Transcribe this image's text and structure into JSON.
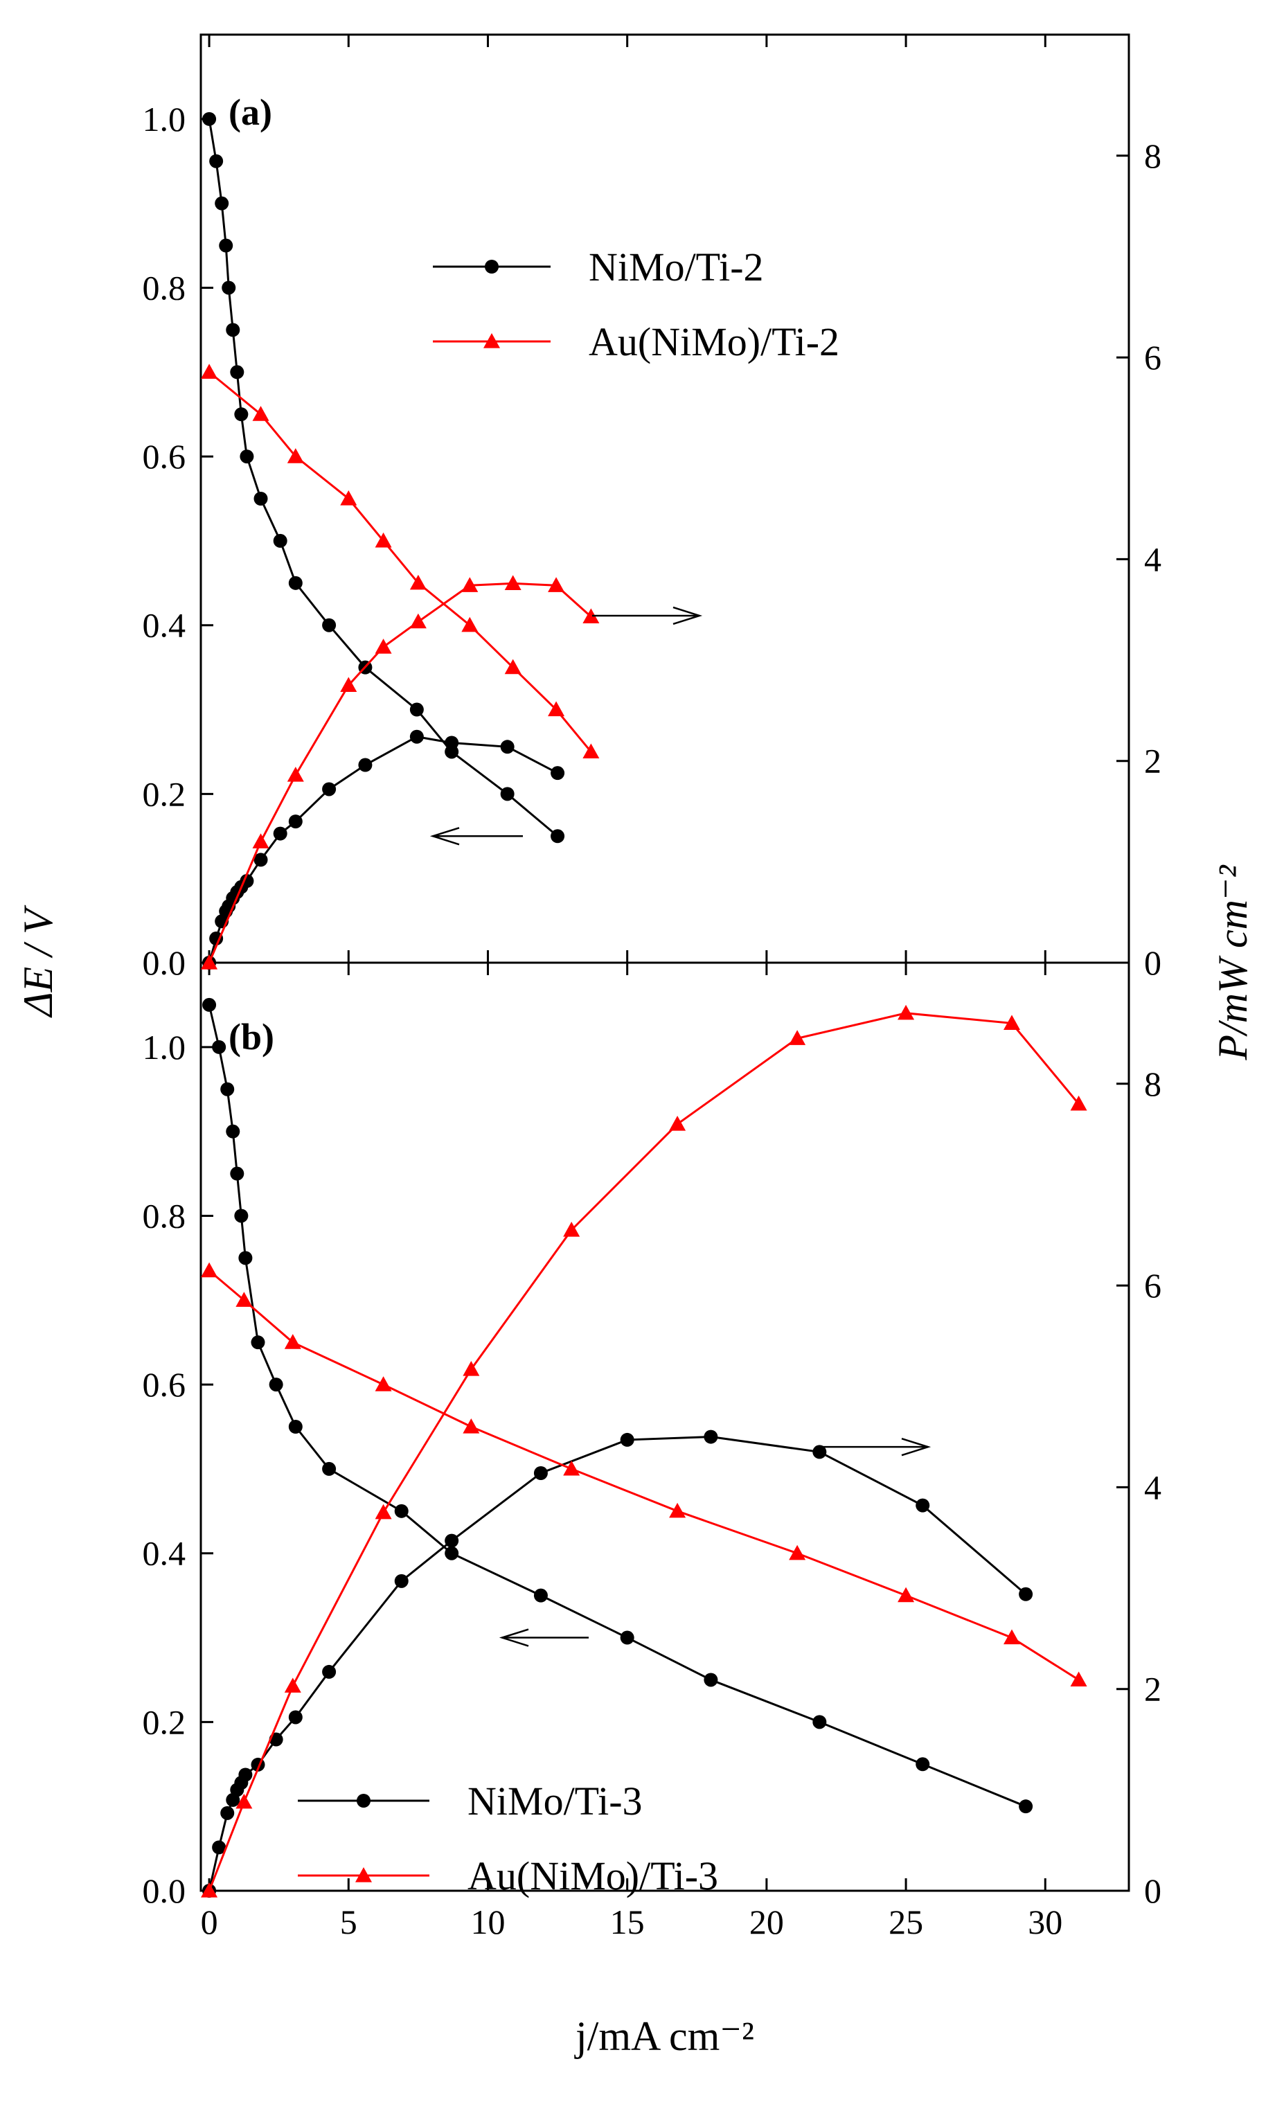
{
  "chart_data": {
    "type": "line",
    "x_label": "j/mA cm⁻²",
    "y_left_label": "ΔE / V",
    "y_right_label": "P/mW cm⁻²",
    "x_ticks": [
      "0",
      "5",
      "10",
      "15",
      "20",
      "25",
      "30"
    ],
    "xlim": [
      -0.3,
      33
    ],
    "panels": [
      {
        "label": "(a)",
        "ylim_left": [
          0,
          1.1
        ],
        "ylim_right": [
          0,
          9.2
        ],
        "y_left_ticks": [
          "0.0",
          "0.2",
          "0.4",
          "0.6",
          "0.8",
          "1.0"
        ],
        "y_right_ticks": [
          "0",
          "2",
          "4",
          "6",
          "8"
        ],
        "legend_position": "top-center",
        "series": [
          {
            "name": "NiMo/Ti-2",
            "axis": "left",
            "marker": "circle",
            "color": "#000000",
            "x": [
              0,
              0.25,
              0.45,
              0.6,
              0.7,
              0.85,
              1.0,
              1.15,
              1.35,
              1.85,
              2.55,
              3.1,
              4.3,
              5.6,
              7.45,
              8.7,
              10.7,
              12.5
            ],
            "y": [
              1.0,
              0.95,
              0.9,
              0.85,
              0.8,
              0.75,
              0.7,
              0.65,
              0.6,
              0.55,
              0.5,
              0.45,
              0.4,
              0.35,
              0.3,
              0.25,
              0.2,
              0.15
            ]
          },
          {
            "name": "NiMo/Ti-2 power",
            "axis": "right",
            "marker": "circle",
            "color": "#000000",
            "x": [
              0,
              0.25,
              0.45,
              0.6,
              0.7,
              0.85,
              1.0,
              1.15,
              1.35,
              1.85,
              2.55,
              3.1,
              4.3,
              5.6,
              7.45,
              8.7,
              10.7,
              12.5
            ],
            "y": [
              0,
              0.24,
              0.41,
              0.51,
              0.56,
              0.64,
              0.7,
              0.75,
              0.81,
              1.02,
              1.28,
              1.4,
              1.72,
              1.96,
              2.24,
              2.18,
              2.14,
              1.88
            ]
          },
          {
            "name": "Au(NiMo)/Ti-2",
            "axis": "left",
            "marker": "triangle",
            "color": "#ff0000",
            "x": [
              0,
              1.85,
              3.1,
              5.0,
              6.25,
              7.5,
              9.35,
              10.9,
              12.45,
              13.7
            ],
            "y": [
              0.7,
              0.65,
              0.6,
              0.55,
              0.5,
              0.45,
              0.4,
              0.35,
              0.3,
              0.25
            ]
          },
          {
            "name": "Au(NiMo)/Ti-2 power",
            "axis": "right",
            "marker": "triangle",
            "color": "#ff0000",
            "x": [
              0,
              1.85,
              3.1,
              5.0,
              6.25,
              7.5,
              9.35,
              10.9,
              12.45,
              13.7
            ],
            "y": [
              0,
              1.2,
              1.86,
              2.75,
              3.13,
              3.38,
              3.74,
              3.76,
              3.74,
              3.43
            ]
          }
        ],
        "annotations": [
          {
            "text": "→",
            "meaning": "power curves read on right axis"
          },
          {
            "text": "←",
            "meaning": "voltage curves read on left axis"
          }
        ]
      },
      {
        "label": "(b)",
        "ylim_left": [
          0,
          1.1
        ],
        "ylim_right": [
          0,
          9.2
        ],
        "y_left_ticks": [
          "0.0",
          "0.2",
          "0.4",
          "0.6",
          "0.8",
          "1.0"
        ],
        "y_right_ticks": [
          "0",
          "2",
          "4",
          "6",
          "8"
        ],
        "legend_position": "bottom-center",
        "series": [
          {
            "name": "NiMo/Ti-3",
            "axis": "left",
            "marker": "circle",
            "color": "#000000",
            "x": [
              0,
              0.35,
              0.65,
              0.85,
              1.0,
              1.15,
              1.3,
              1.75,
              2.4,
              3.1,
              4.3,
              6.9,
              8.7,
              11.9,
              15.0,
              18.0,
              21.9,
              25.6,
              29.3
            ],
            "y": [
              1.05,
              1.0,
              0.95,
              0.9,
              0.85,
              0.8,
              0.75,
              0.65,
              0.6,
              0.55,
              0.5,
              0.45,
              0.4,
              0.35,
              0.3,
              0.25,
              0.2,
              0.15,
              0.1
            ]
          },
          {
            "name": "NiMo/Ti-3 power",
            "axis": "right",
            "marker": "circle",
            "color": "#000000",
            "x": [
              0,
              0.35,
              0.65,
              0.85,
              1.0,
              1.15,
              1.3,
              1.75,
              2.4,
              3.1,
              4.3,
              6.9,
              8.7,
              11.9,
              15.0,
              18.0,
              21.9,
              25.6,
              29.3
            ],
            "y": [
              0,
              0.43,
              0.77,
              0.9,
              1.0,
              1.07,
              1.15,
              1.25,
              1.5,
              1.72,
              2.17,
              3.07,
              3.47,
              4.14,
              4.47,
              4.5,
              4.35,
              3.82,
              2.94
            ]
          },
          {
            "name": "Au(NiMo)/Ti-3",
            "axis": "left",
            "marker": "triangle",
            "color": "#ff0000",
            "x": [
              0,
              1.25,
              3.0,
              6.25,
              9.4,
              13.0,
              16.8,
              21.1,
              25.0,
              28.8,
              31.2
            ],
            "y": [
              0.735,
              0.7,
              0.65,
              0.6,
              0.55,
              0.5,
              0.45,
              0.4,
              0.35,
              0.3,
              0.25
            ]
          },
          {
            "name": "Au(NiMo)/Ti-3 power",
            "axis": "right",
            "marker": "triangle",
            "color": "#ff0000",
            "x": [
              0,
              1.25,
              3.0,
              6.25,
              9.4,
              13.0,
              16.8,
              21.1,
              25.0,
              28.8,
              31.2
            ],
            "y": [
              0,
              0.88,
              2.03,
              3.75,
              5.17,
              6.55,
              7.6,
              8.45,
              8.7,
              8.6,
              7.8
            ]
          }
        ],
        "annotations": [
          {
            "text": "→",
            "meaning": "power curves read on right axis"
          },
          {
            "text": "←",
            "meaning": "voltage curves read on left axis"
          }
        ]
      }
    ],
    "legend_a": [
      "NiMo/Ti-2",
      "Au(NiMo)/Ti-2"
    ],
    "legend_b": [
      "NiMo/Ti-3",
      "Au(NiMo)/Ti-3"
    ]
  }
}
